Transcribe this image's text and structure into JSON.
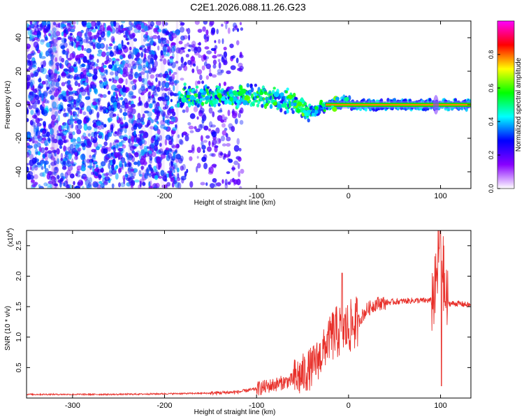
{
  "title": "C2E1.2026.088.11.26.G23",
  "chart_data": [
    {
      "type": "heatmap",
      "title": "C2E1.2026.088.11.26.G23",
      "xlabel": "Height of straight line (km)",
      "ylabel": "Frequency (Hz)",
      "xlim": [
        -350,
        133
      ],
      "ylim": [
        -50,
        50
      ],
      "xticks": [
        "-300",
        "-200",
        "-100",
        "0",
        "100"
      ],
      "yticks": [
        "-40",
        "-20",
        "0",
        "20",
        "40"
      ],
      "colorbar": {
        "label": "Normalized spectral amplitude",
        "range": [
          0,
          1
        ],
        "ticks": [
          "0.0",
          "0.2",
          "0.4",
          "0.6",
          "0.8"
        ],
        "colors": [
          "#ffffff",
          "#8800ff",
          "#0000ff",
          "#00ffff",
          "#00ff00",
          "#ffff00",
          "#ff0000",
          "#ff00ff"
        ]
      },
      "features": {
        "noise_region_km": [
          -350,
          -185
        ],
        "noise_level": 0.15,
        "band_start_km": -185,
        "band_center_hz": [
          [
            -185,
            5
          ],
          [
            -100,
            5
          ],
          [
            -75,
            3
          ],
          [
            -55,
            0
          ],
          [
            -42,
            -5
          ],
          [
            -30,
            -2
          ],
          [
            -15,
            0
          ],
          [
            0,
            2
          ],
          [
            5,
            0
          ],
          [
            133,
            0
          ]
        ],
        "band_halfwidth_hz": 4,
        "coherent_line_start_km": -25,
        "coherent_line_level": 0.95,
        "spike_km": 95
      }
    },
    {
      "type": "line",
      "xlabel": "Height of straight line (km)",
      "ylabel": "SNR (10 * v/v)",
      "y_exponent": "(x10^4)",
      "y_exponent_parts": {
        "base": "(x10",
        "exp": "4",
        "close": ")"
      },
      "xlim": [
        -350,
        133
      ],
      "ylim": [
        0,
        2.75
      ],
      "xticks": [
        "-300",
        "-200",
        "-100",
        "0",
        "100"
      ],
      "yticks": [
        "0.5",
        "1.0",
        "1.5",
        "2.0",
        "2.5"
      ],
      "color": "#e8302a",
      "series": [
        {
          "x": [
            -350,
            -250,
            -200,
            -150,
            -120,
            -100,
            -80,
            -60,
            -50,
            -40,
            -30,
            -20,
            -10,
            0,
            10,
            20,
            30,
            50,
            70,
            90,
            95,
            100,
            105,
            110,
            120,
            133
          ],
          "y": [
            0.06,
            0.06,
            0.07,
            0.08,
            0.1,
            0.15,
            0.22,
            0.3,
            0.38,
            0.5,
            0.7,
            1.0,
            1.1,
            1.15,
            1.25,
            1.45,
            1.55,
            1.58,
            1.6,
            1.6,
            1.8,
            2.75,
            1.6,
            1.55,
            1.55,
            1.52
          ]
        }
      ],
      "annotations": {
        "peak_near_km": [
          -7,
          2.05
        ],
        "spike_km": [
          100,
          2.75
        ]
      }
    }
  ]
}
